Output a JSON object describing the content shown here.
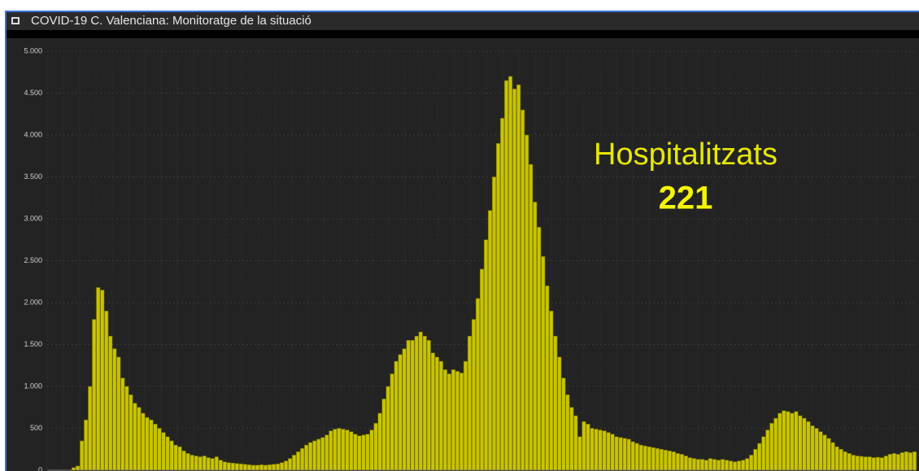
{
  "window": {
    "title": "COVID-19 C. Valenciana: Monitoratge de la situació"
  },
  "indicator": {
    "label": "Hospitalitzats",
    "value": "221"
  },
  "chart_data": {
    "type": "bar",
    "color": "#c9c400",
    "grid": true,
    "ylim": [
      0,
      5000
    ],
    "yticks": [
      0,
      500,
      {
        "value": 1000,
        "label": "1.000"
      },
      {
        "value": 1500,
        "label": "1.500"
      },
      {
        "value": 2000,
        "label": "2.000"
      },
      {
        "value": 2500,
        "label": "2.500"
      },
      {
        "value": 3000,
        "label": "3.000"
      },
      {
        "value": 3500,
        "label": "3.500"
      },
      {
        "value": 4000,
        "label": "4.000"
      },
      {
        "value": 4500,
        "label": "4.500"
      },
      {
        "value": 5000,
        "label": "5.000"
      }
    ],
    "values": [
      0,
      0,
      0,
      0,
      0,
      0,
      30,
      50,
      350,
      600,
      1000,
      1800,
      2180,
      2150,
      1900,
      1600,
      1450,
      1350,
      1100,
      1000,
      900,
      800,
      750,
      680,
      630,
      600,
      550,
      500,
      450,
      400,
      350,
      300,
      280,
      230,
      200,
      180,
      170,
      160,
      170,
      150,
      140,
      160,
      120,
      100,
      90,
      85,
      80,
      75,
      70,
      65,
      60,
      60,
      65,
      60,
      65,
      70,
      75,
      90,
      110,
      140,
      180,
      220,
      260,
      300,
      330,
      350,
      370,
      390,
      420,
      470,
      490,
      500,
      490,
      480,
      460,
      430,
      410,
      420,
      430,
      480,
      560,
      680,
      850,
      1000,
      1150,
      1300,
      1380,
      1450,
      1550,
      1550,
      1600,
      1650,
      1600,
      1550,
      1400,
      1350,
      1300,
      1200,
      1150,
      1200,
      1180,
      1160,
      1300,
      1600,
      1800,
      2050,
      2400,
      2750,
      3100,
      3500,
      3900,
      4200,
      4650,
      4700,
      4550,
      4600,
      4300,
      4000,
      3650,
      3200,
      2900,
      2550,
      2200,
      1900,
      1600,
      1350,
      1100,
      900,
      750,
      650,
      400,
      580,
      550,
      500,
      490,
      480,
      470,
      450,
      430,
      400,
      390,
      380,
      370,
      340,
      320,
      300,
      290,
      280,
      270,
      260,
      250,
      240,
      230,
      220,
      200,
      190,
      170,
      150,
      140,
      130,
      130,
      120,
      140,
      130,
      120,
      130,
      120,
      110,
      100,
      110,
      120,
      140,
      180,
      250,
      320,
      400,
      480,
      560,
      620,
      680,
      710,
      700,
      680,
      700,
      650,
      620,
      580,
      530,
      500,
      460,
      420,
      380,
      330,
      280,
      250,
      220,
      200,
      180,
      170,
      165,
      160,
      160,
      150,
      155,
      150,
      170,
      190,
      200,
      190,
      210,
      220,
      210,
      220
    ]
  }
}
